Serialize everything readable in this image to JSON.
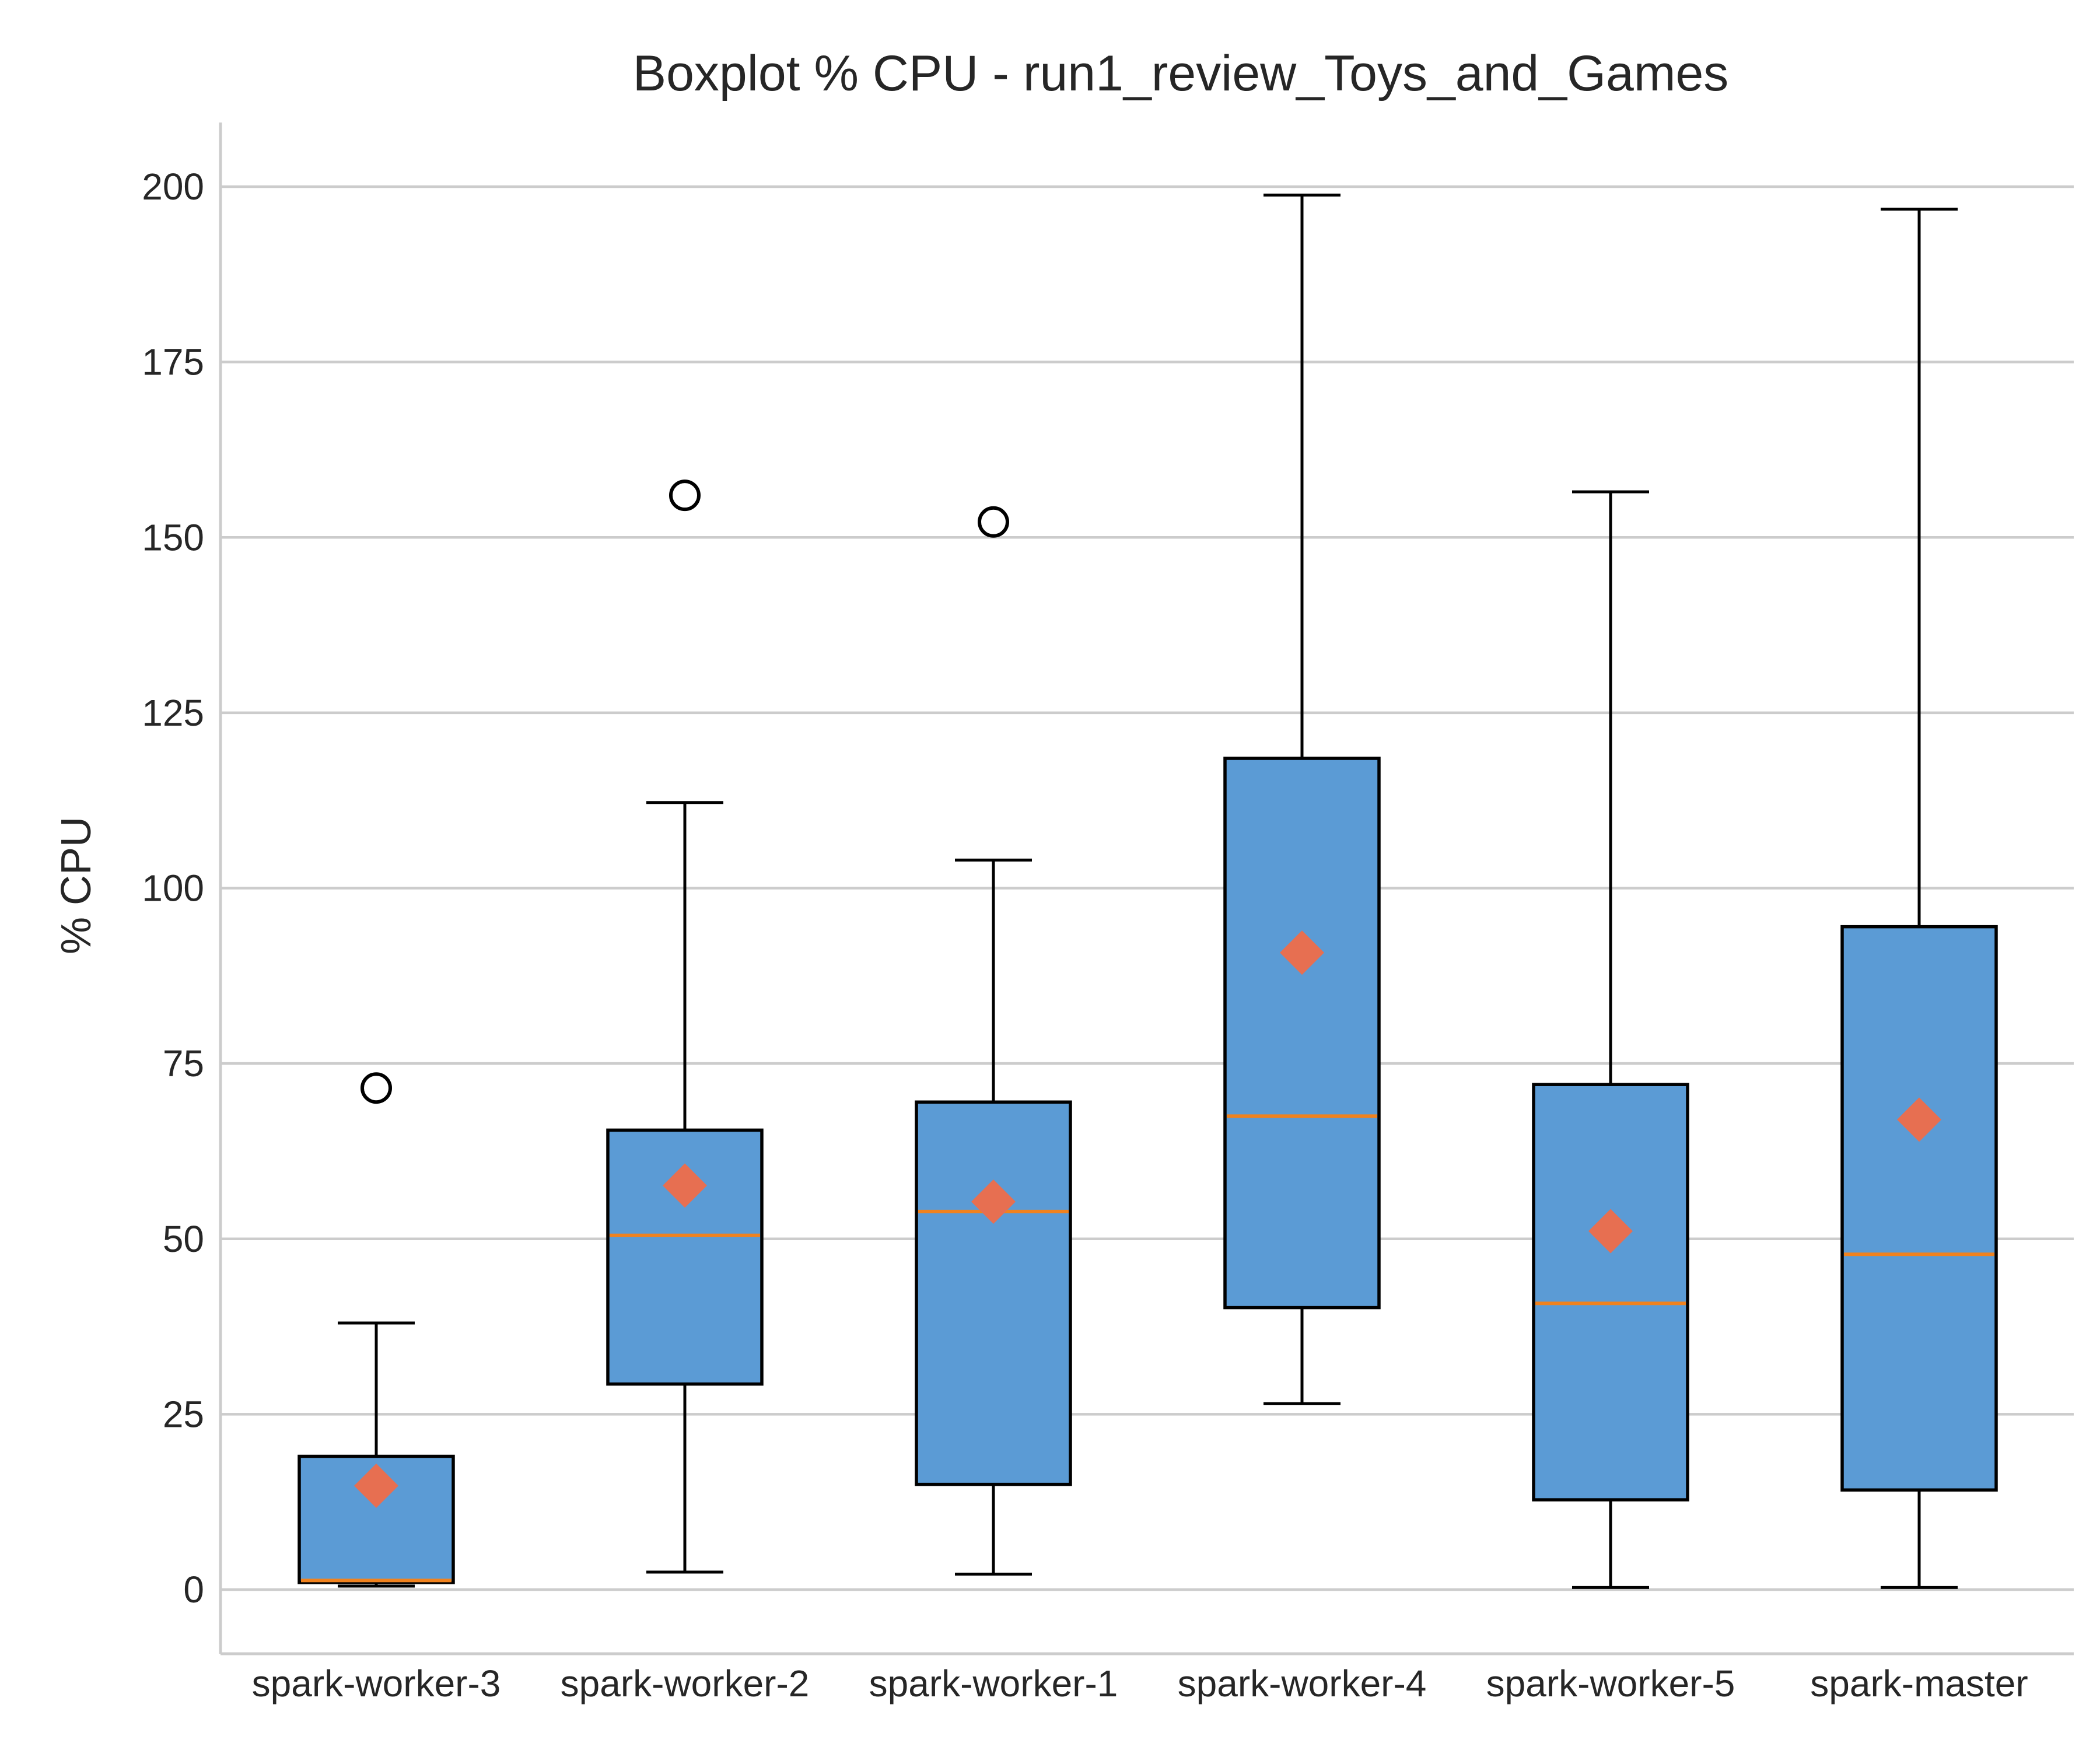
{
  "chart_data": {
    "type": "box",
    "title": "Boxplot % CPU - run1_review_Toys_and_Games",
    "xlabel": "",
    "ylabel": "% CPU",
    "ylim": [
      -9.5,
      209
    ],
    "yticks": [
      0,
      25,
      50,
      75,
      100,
      125,
      150,
      175,
      200
    ],
    "grid": "horizontal",
    "colors": {
      "box": "#5b9bd5",
      "median": "#f0821e",
      "mean": "#e76f51",
      "grid": "#cccccc"
    },
    "categories": [
      "spark-worker-3",
      "spark-worker-2",
      "spark-worker-1",
      "spark-worker-4",
      "spark-worker-5",
      "spark-master"
    ],
    "boxes": [
      {
        "whisker_low": 0.5,
        "q1": 1.0,
        "median": 1.3,
        "q3": 19.0,
        "whisker_high": 38.0,
        "mean": 14.8,
        "outliers": [
          71.5
        ]
      },
      {
        "whisker_low": 2.5,
        "q1": 29.3,
        "median": 50.5,
        "q3": 65.5,
        "whisker_high": 112.2,
        "mean": 57.6,
        "outliers": [
          156.0
        ]
      },
      {
        "whisker_low": 2.2,
        "q1": 15.0,
        "median": 53.9,
        "q3": 69.5,
        "whisker_high": 104.0,
        "mean": 55.3,
        "outliers": [
          152.2
        ]
      },
      {
        "whisker_low": 26.5,
        "q1": 40.2,
        "median": 67.5,
        "q3": 118.5,
        "whisker_high": 198.8,
        "mean": 90.8,
        "outliers": []
      },
      {
        "whisker_low": 0.3,
        "q1": 12.8,
        "median": 40.8,
        "q3": 72.0,
        "whisker_high": 156.5,
        "mean": 51.1,
        "outliers": []
      },
      {
        "whisker_low": 0.3,
        "q1": 14.2,
        "median": 47.8,
        "q3": 94.5,
        "whisker_high": 196.8,
        "mean": 67.0,
        "outliers": []
      }
    ]
  }
}
